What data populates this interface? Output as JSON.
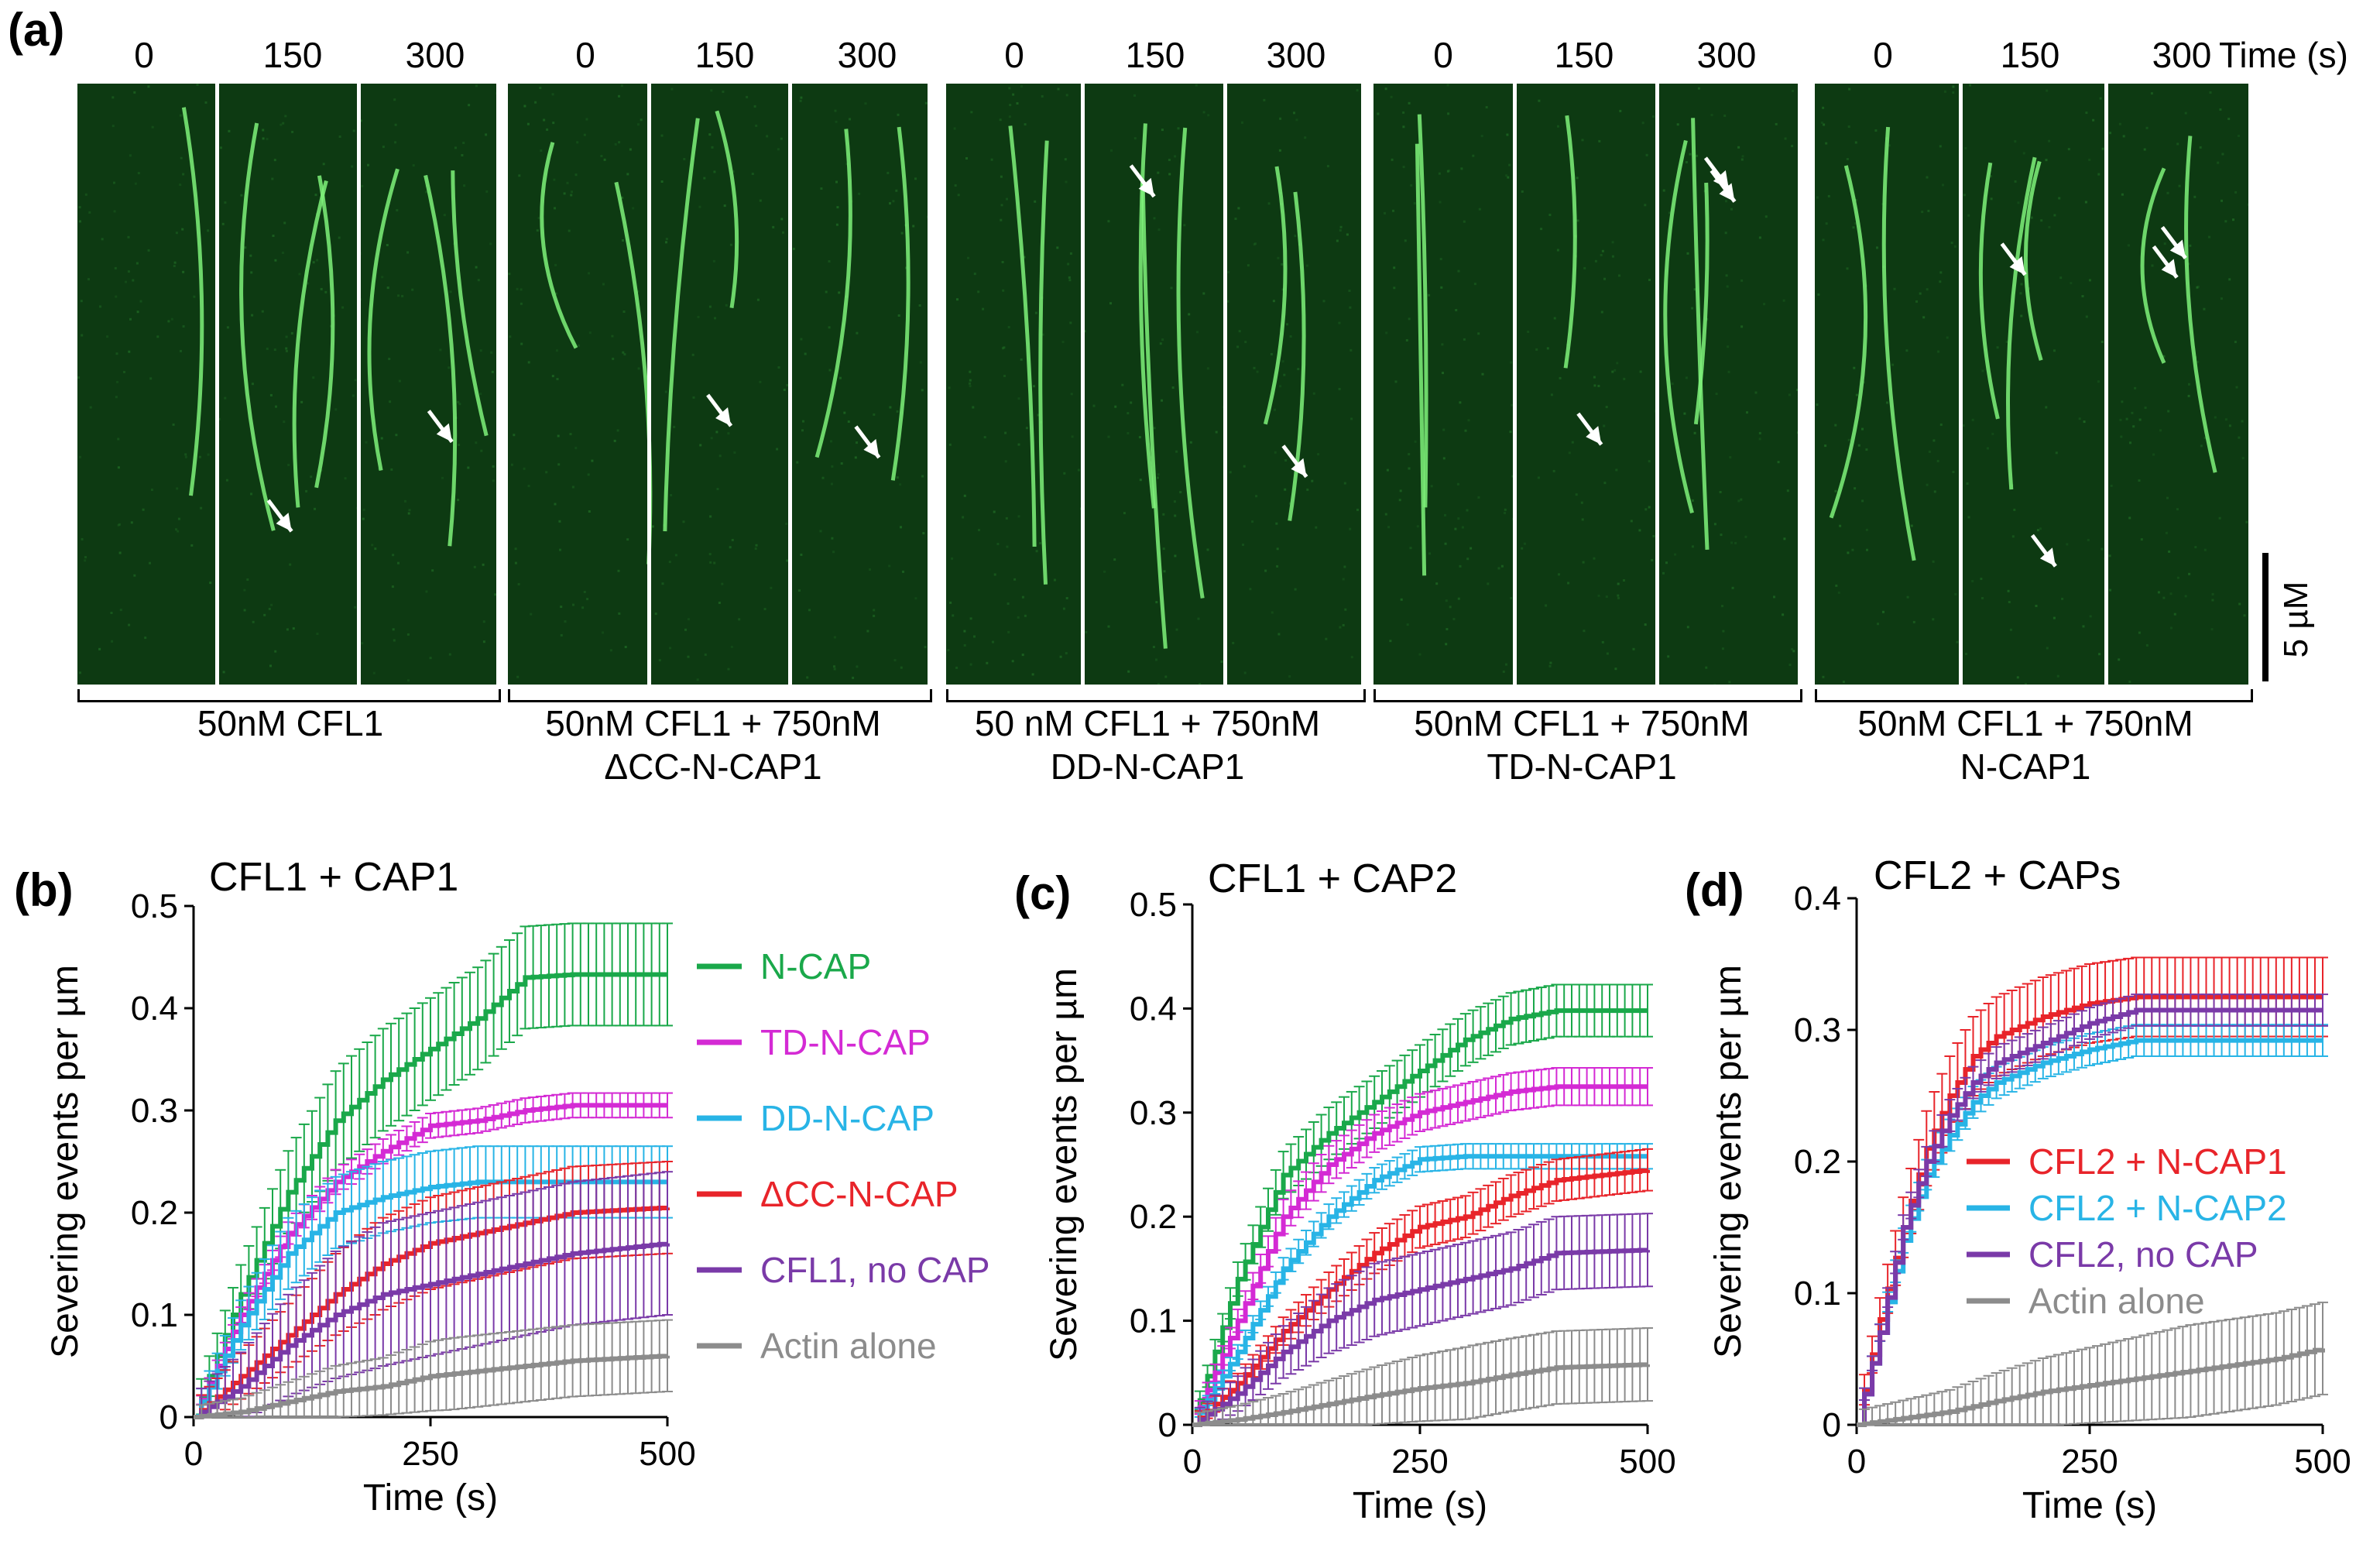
{
  "panel_a": {
    "letter": "(a)",
    "time_unit": "Time (s)",
    "scale_bar_label": "5 µM",
    "groups": [
      {
        "times": [
          "0",
          "150",
          "300"
        ],
        "label_lines": [
          "50nM CFL1"
        ]
      },
      {
        "times": [
          "0",
          "150",
          "300"
        ],
        "label_lines": [
          "50nM CFL1 + 750nM",
          "ΔCC-N-CAP1"
        ]
      },
      {
        "times": [
          "0",
          "150",
          "300"
        ],
        "label_lines": [
          "50 nM CFL1 + 750nM",
          "DD-N-CAP1"
        ]
      },
      {
        "times": [
          "0",
          "150",
          "300"
        ],
        "label_lines": [
          "50nM CFL1 + 750nM",
          "TD-N-CAP1"
        ]
      },
      {
        "times": [
          "0",
          "150",
          "300"
        ],
        "label_lines": [
          "50nM CFL1 + 750nM",
          "N-CAP1"
        ]
      }
    ]
  },
  "colors": {
    "N-CAP": "#1aa84a",
    "TD-N-CAP": "#d42ad4",
    "DD-N-CAP": "#28b4e6",
    "dCC-N-CAP": "#e8242a",
    "no-CAP": "#7a3aa8",
    "actin": "#8c8c8c",
    "filament": "#7ff27a"
  },
  "chart_data": [
    {
      "letter": "(b)",
      "type": "line",
      "title": "CFL1 + CAP1",
      "xlabel": "Time (s)",
      "ylabel": "Severing events per µm",
      "xlim": [
        0,
        500
      ],
      "ylim": [
        0,
        0.5
      ],
      "xticks": [
        "0",
        "250",
        "500"
      ],
      "yticks": [
        "0",
        "0.1",
        "0.2",
        "0.3",
        "0.4",
        "0.5"
      ],
      "legend_position": "right",
      "series": [
        {
          "name": "N-CAP",
          "color": "#1aa84a",
          "x": [
            0,
            50,
            100,
            150,
            200,
            250,
            300,
            350,
            400,
            500
          ],
          "y": [
            0,
            0.12,
            0.22,
            0.29,
            0.33,
            0.36,
            0.39,
            0.43,
            0.433,
            0.433
          ],
          "err": 0.05
        },
        {
          "name": "TD-N-CAP",
          "color": "#d42ad4",
          "x": [
            0,
            50,
            100,
            150,
            200,
            250,
            300,
            350,
            400,
            500
          ],
          "y": [
            0,
            0.1,
            0.18,
            0.23,
            0.26,
            0.285,
            0.29,
            0.3,
            0.305,
            0.305
          ],
          "err": 0.012
        },
        {
          "name": "DD-N-CAP",
          "color": "#28b4e6",
          "x": [
            0,
            50,
            100,
            150,
            200,
            250,
            300,
            350,
            400,
            500
          ],
          "y": [
            0,
            0.09,
            0.16,
            0.2,
            0.215,
            0.225,
            0.23,
            0.23,
            0.23,
            0.23
          ],
          "err": 0.035
        },
        {
          "name": "ΔCC-N-CAP",
          "color": "#e8242a",
          "x": [
            0,
            50,
            100,
            150,
            200,
            250,
            300,
            350,
            400,
            500
          ],
          "y": [
            0,
            0.04,
            0.08,
            0.12,
            0.15,
            0.17,
            0.18,
            0.19,
            0.2,
            0.205
          ],
          "err": 0.045
        },
        {
          "name": "CFL1, no CAP",
          "color": "#7a3aa8",
          "x": [
            0,
            50,
            100,
            150,
            200,
            250,
            300,
            350,
            400,
            500
          ],
          "y": [
            0,
            0.03,
            0.07,
            0.1,
            0.12,
            0.13,
            0.14,
            0.15,
            0.16,
            0.17
          ],
          "err": 0.07
        },
        {
          "name": "Actin alone",
          "color": "#8c8c8c",
          "x": [
            0,
            50,
            100,
            150,
            200,
            250,
            300,
            350,
            400,
            500
          ],
          "y": [
            0,
            0.005,
            0.015,
            0.025,
            0.03,
            0.04,
            0.045,
            0.05,
            0.055,
            0.06
          ],
          "err": 0.035
        }
      ]
    },
    {
      "letter": "(c)",
      "type": "line",
      "title": "CFL1 + CAP2",
      "xlabel": "Time (s)",
      "ylabel": "Severing events per µm",
      "xlim": [
        0,
        500
      ],
      "ylim": [
        0,
        0.5
      ],
      "xticks": [
        "0",
        "250",
        "500"
      ],
      "yticks": [
        "0",
        "0.1",
        "0.2",
        "0.3",
        "0.4",
        "0.5"
      ],
      "series": [
        {
          "name": "N-CAP",
          "color": "#1aa84a",
          "x": [
            0,
            50,
            100,
            150,
            200,
            250,
            300,
            350,
            400,
            500
          ],
          "y": [
            0,
            0.14,
            0.24,
            0.28,
            0.31,
            0.34,
            0.37,
            0.39,
            0.398,
            0.398
          ],
          "err": 0.025
        },
        {
          "name": "TD-N-CAP",
          "color": "#d42ad4",
          "x": [
            0,
            50,
            100,
            150,
            200,
            250,
            300,
            350,
            400,
            500
          ],
          "y": [
            0,
            0.1,
            0.2,
            0.25,
            0.28,
            0.3,
            0.31,
            0.32,
            0.325,
            0.325
          ],
          "err": 0.018
        },
        {
          "name": "DD-N-CAP",
          "color": "#28b4e6",
          "x": [
            0,
            50,
            100,
            150,
            200,
            250,
            300,
            350,
            400,
            500
          ],
          "y": [
            0,
            0.07,
            0.15,
            0.2,
            0.235,
            0.255,
            0.258,
            0.258,
            0.258,
            0.258
          ],
          "err": 0.012
        },
        {
          "name": "ΔCC-N-CAP",
          "color": "#e8242a",
          "x": [
            0,
            50,
            100,
            150,
            200,
            250,
            300,
            350,
            400,
            500
          ],
          "y": [
            0,
            0.04,
            0.09,
            0.13,
            0.165,
            0.19,
            0.2,
            0.22,
            0.235,
            0.245
          ],
          "err": 0.02
        },
        {
          "name": "CFL1, no CAP",
          "color": "#7a3aa8",
          "x": [
            0,
            50,
            100,
            150,
            200,
            250,
            300,
            350,
            400,
            500
          ],
          "y": [
            0,
            0.03,
            0.07,
            0.1,
            0.12,
            0.13,
            0.14,
            0.15,
            0.165,
            0.168
          ],
          "err": 0.035
        },
        {
          "name": "Actin alone",
          "color": "#8c8c8c",
          "x": [
            0,
            50,
            100,
            150,
            200,
            250,
            300,
            350,
            400,
            500
          ],
          "y": [
            0,
            0.005,
            0.012,
            0.02,
            0.028,
            0.035,
            0.04,
            0.048,
            0.055,
            0.058
          ],
          "err": 0.035
        }
      ]
    },
    {
      "letter": "(d)",
      "type": "line",
      "title": "CFL2 + CAPs",
      "xlabel": "Time (s)",
      "ylabel": "Severing events per µm",
      "xlim": [
        0,
        500
      ],
      "ylim": [
        0,
        0.4
      ],
      "xticks": [
        "0",
        "250",
        "500"
      ],
      "yticks": [
        "0",
        "0.1",
        "0.2",
        "0.3",
        "0.4"
      ],
      "legend_position": "center-right",
      "series": [
        {
          "name": "CFL2 + N-CAP1",
          "color": "#e8242a",
          "x": [
            0,
            25,
            50,
            75,
            100,
            125,
            150,
            200,
            250,
            300,
            500
          ],
          "y": [
            0,
            0.08,
            0.15,
            0.21,
            0.25,
            0.28,
            0.295,
            0.31,
            0.32,
            0.325,
            0.325
          ],
          "err": 0.03
        },
        {
          "name": "CFL2 + N-CAP2",
          "color": "#28b4e6",
          "x": [
            0,
            25,
            50,
            75,
            100,
            125,
            150,
            200,
            250,
            300,
            500
          ],
          "y": [
            0,
            0.07,
            0.14,
            0.19,
            0.22,
            0.245,
            0.26,
            0.275,
            0.285,
            0.292,
            0.292
          ],
          "err": 0.012
        },
        {
          "name": "CFL2, no CAP",
          "color": "#7a3aa8",
          "x": [
            0,
            25,
            50,
            75,
            100,
            125,
            150,
            200,
            250,
            300,
            500
          ],
          "y": [
            0,
            0.07,
            0.15,
            0.2,
            0.235,
            0.26,
            0.275,
            0.29,
            0.305,
            0.315,
            0.315
          ],
          "err": 0.012
        },
        {
          "name": "Actin alone",
          "color": "#8c8c8c",
          "x": [
            0,
            50,
            100,
            150,
            200,
            250,
            300,
            350,
            400,
            450,
            500
          ],
          "y": [
            0,
            0.005,
            0.01,
            0.018,
            0.025,
            0.03,
            0.035,
            0.04,
            0.045,
            0.05,
            0.058
          ],
          "err": 0.035
        }
      ]
    }
  ]
}
